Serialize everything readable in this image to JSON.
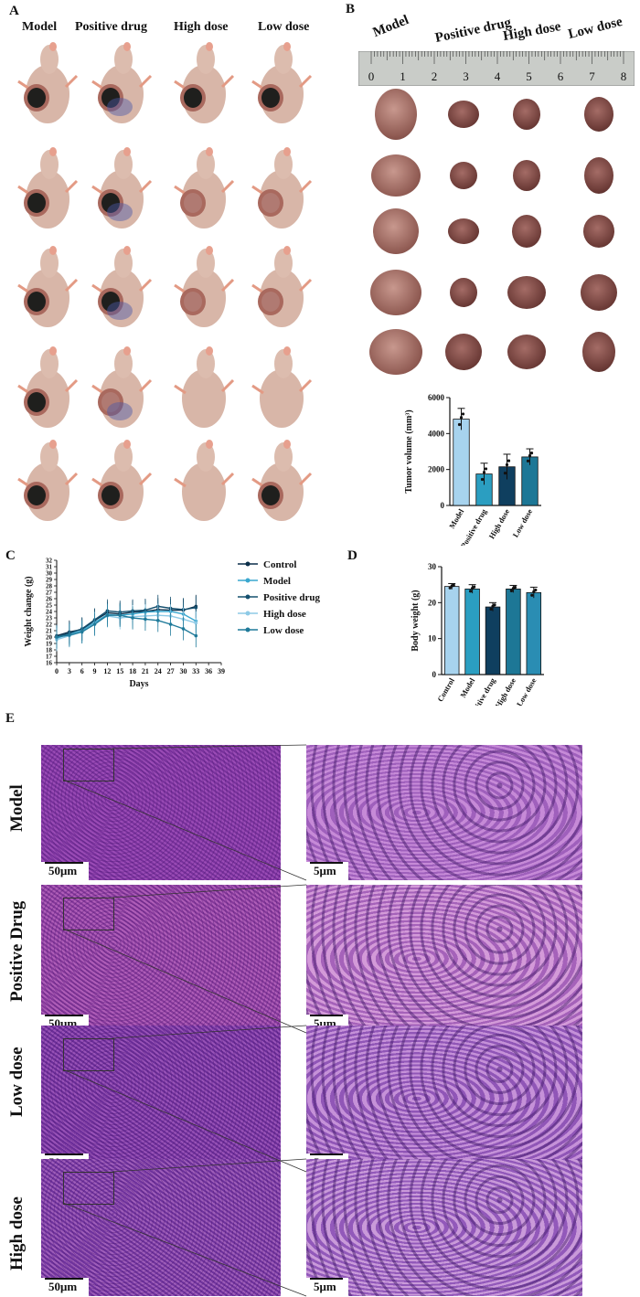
{
  "panels": {
    "a": "A",
    "b": "B",
    "c": "C",
    "d": "D",
    "e": "E"
  },
  "panel_a": {
    "columns": [
      "Model",
      "Positive drug",
      "High dose",
      "Low dose"
    ]
  },
  "panel_b": {
    "columns": [
      "Model",
      "Positive drug",
      "High dose",
      "Low dose"
    ],
    "ruler_ticks": [
      "0",
      "1",
      "2",
      "3",
      "4",
      "5",
      "6",
      "7",
      "8"
    ]
  },
  "panel_e": {
    "rows": [
      "Model",
      "Positive Drug",
      "Low dose",
      "High dose"
    ],
    "scale_left": "50μm",
    "scale_right": "5μm"
  },
  "chart_data": [
    {
      "id": "tumor-volume",
      "type": "bar",
      "ylabel": "Tumor volume (mm³)",
      "ylim": [
        0,
        6000
      ],
      "yticks": [
        0,
        2000,
        4000,
        6000
      ],
      "categories": [
        "Model",
        "Positive drug",
        "High dose",
        "Low dose"
      ],
      "values": [
        4800,
        1750,
        2150,
        2700
      ],
      "errors": [
        600,
        600,
        700,
        450
      ],
      "colors": [
        "#a7d3ee",
        "#2b9ec1",
        "#0f3f5f",
        "#1d7796"
      ]
    },
    {
      "id": "body-weight",
      "type": "bar",
      "ylabel": "Body weight (g)",
      "ylim": [
        0,
        30
      ],
      "yticks": [
        0,
        10,
        20,
        30
      ],
      "categories": [
        "Control",
        "Model",
        "Positive drug",
        "High dose",
        "Low dose"
      ],
      "values": [
        24.5,
        23.8,
        18.8,
        23.8,
        22.8
      ],
      "errors": [
        0.8,
        1.2,
        1.2,
        1.0,
        1.5
      ],
      "colors": [
        "#a7d3ee",
        "#2b9ec1",
        "#0f3f5f",
        "#1d7796",
        "#2a8db3"
      ]
    },
    {
      "id": "weight-change",
      "type": "line",
      "xlabel": "Days",
      "ylabel": "Weight change (g)",
      "xlim": [
        0,
        39
      ],
      "ylim": [
        16,
        32
      ],
      "xticks": [
        0,
        3,
        6,
        9,
        12,
        15,
        18,
        21,
        24,
        27,
        30,
        33,
        36,
        39
      ],
      "yticks": [
        16,
        17,
        18,
        19,
        20,
        21,
        22,
        23,
        24,
        25,
        26,
        27,
        28,
        29,
        30,
        31,
        32
      ],
      "x": [
        0,
        3,
        6,
        9,
        12,
        15,
        18,
        21,
        24,
        27,
        30,
        33
      ],
      "series": [
        {
          "name": "Control",
          "color": "#0b2f4a",
          "values": [
            20.2,
            20.8,
            21.2,
            22.6,
            23.8,
            23.6,
            23.9,
            24.0,
            24.3,
            24.2,
            24.2,
            24.8
          ]
        },
        {
          "name": "Model",
          "color": "#3aa7cf",
          "values": [
            19.8,
            20.5,
            21.0,
            22.3,
            23.5,
            23.4,
            23.6,
            23.9,
            24.0,
            24.0,
            23.6,
            22.5
          ]
        },
        {
          "name": "Positive drug",
          "color": "#15506f",
          "values": [
            20.0,
            20.6,
            21.3,
            22.7,
            24.1,
            23.9,
            24.1,
            24.2,
            24.8,
            24.5,
            24.3,
            24.6
          ]
        },
        {
          "name": "High dose",
          "color": "#8ecae6",
          "values": [
            19.6,
            20.2,
            20.8,
            22.1,
            23.3,
            23.0,
            23.2,
            23.3,
            23.4,
            23.3,
            22.8,
            22.2
          ]
        },
        {
          "name": "Low dose",
          "color": "#1f7a9a",
          "values": [
            20.0,
            20.3,
            20.8,
            22.0,
            23.4,
            23.4,
            23.0,
            22.8,
            22.6,
            22.0,
            21.3,
            20.2
          ]
        }
      ]
    }
  ]
}
